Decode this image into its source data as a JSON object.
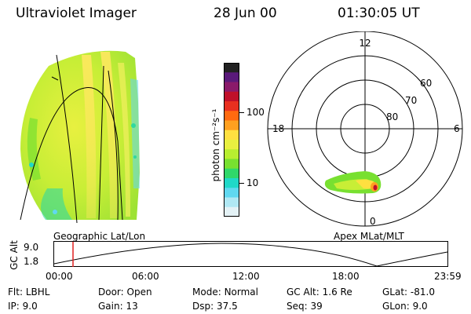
{
  "header": {
    "instrument": "Ultraviolet Imager",
    "date": "28 Jun 00",
    "time": "01:30:05 UT"
  },
  "colorbar": {
    "label": "photon cm⁻²s⁻¹",
    "ticks": [
      "100",
      "10"
    ],
    "colors": [
      "#222222",
      "#5a1a7a",
      "#8a1a6a",
      "#c0102a",
      "#e83020",
      "#ff6a10",
      "#ffa020",
      "#ffe040",
      "#e8f040",
      "#b8ee30",
      "#78e030",
      "#30d86a",
      "#20d8c8",
      "#60d8f0",
      "#b0e8f4",
      "#e4f2f6"
    ]
  },
  "polar": {
    "clock_labels": [
      "12",
      "18",
      "6",
      "0"
    ],
    "lat_labels": [
      "60",
      "70",
      "80"
    ]
  },
  "panel_labels": {
    "left": "Geographic Lat/Lon",
    "right": "Apex  MLat/MLT"
  },
  "timeline": {
    "ylabel": "GC Alt",
    "yticks": [
      "9.0",
      "1.8"
    ],
    "xticks": [
      "00:00",
      "06:00",
      "12:00",
      "18:00",
      "23:59"
    ],
    "marker_time": "01:30"
  },
  "info": {
    "flt": {
      "label": "Flt:",
      "value": "LBHL"
    },
    "ip": {
      "label": "IP:",
      "value": "9.0"
    },
    "door": {
      "label": "Door:",
      "value": "Open"
    },
    "gain": {
      "label": "Gain:",
      "value": "13"
    },
    "mode": {
      "label": "Mode:",
      "value": "Normal"
    },
    "dsp": {
      "label": "Dsp:",
      "value": "37.5"
    },
    "gcalt": {
      "label": "GC Alt:",
      "value": "1.6 Re"
    },
    "seq": {
      "label": "Seq:",
      "value": "39"
    },
    "glat": {
      "label": "GLat:",
      "value": "-81.0"
    },
    "glon": {
      "label": "GLon:",
      "value": "9.0"
    }
  }
}
